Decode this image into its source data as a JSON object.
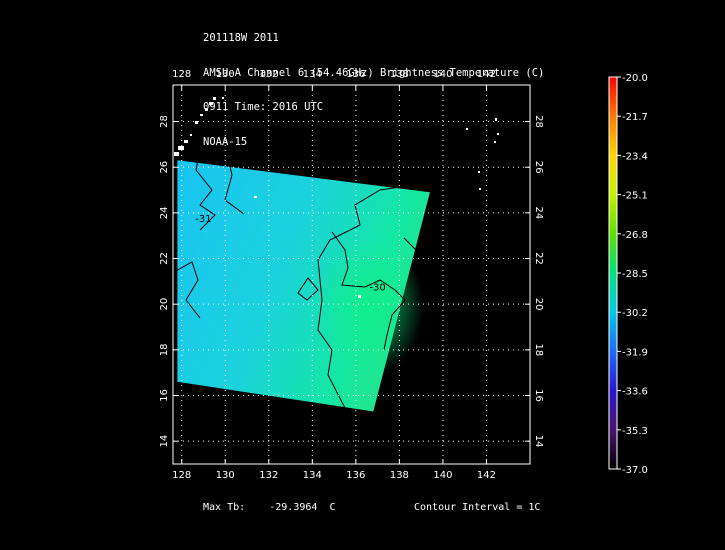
{
  "header": {
    "line1": "201118W 2011",
    "line2": "AMSU-A Channel 6 (54.46GHz) Brightness Temperature (C)",
    "line3": "0911 Time: 2016 UTC",
    "line4": "NOAA-15"
  },
  "footer": {
    "max_label": "Max Tb:",
    "max_value": "-29.3964",
    "max_unit": "C",
    "contour_interval": "Contour Interval = 1C"
  },
  "chart_data": {
    "type": "heatmap",
    "title": "AMSU-A Channel 6 (54.46GHz) Brightness Temperature (C)",
    "x_ticks": [
      "128",
      "130",
      "132",
      "134",
      "136",
      "138",
      "140",
      "142"
    ],
    "y_ticks": [
      "14",
      "16",
      "18",
      "20",
      "22",
      "24",
      "26",
      "28"
    ],
    "xlim": [
      127.6,
      144.0
    ],
    "ylim": [
      13.0,
      29.6
    ],
    "grid": true,
    "swath_corners": [
      [
        127.8,
        26.3
      ],
      [
        139.4,
        24.9
      ],
      [
        136.8,
        15.3
      ],
      [
        127.8,
        16.6
      ]
    ],
    "swath_base_value": -30.7,
    "warm_core": {
      "lon": 136.6,
      "lat": 19.9,
      "value": -29.4
    },
    "contour_labels": [
      {
        "text": "-31",
        "lon": 129.0,
        "lat": 23.6
      },
      {
        "text": "-30",
        "lon": 137.0,
        "lat": 20.6
      }
    ],
    "colorbar": {
      "labels": [
        "-20.0",
        "-21.7",
        "-23.4",
        "-25.1",
        "-26.8",
        "-28.5",
        "-30.2",
        "-31.9",
        "-33.6",
        "-35.3",
        "-37.0"
      ],
      "min": -37.0,
      "max": -20.0,
      "colors": [
        "#ff0000",
        "#ff7a00",
        "#ffd400",
        "#c8f000",
        "#5de000",
        "#00e080",
        "#00c8e8",
        "#1b6cff",
        "#2a17d0",
        "#4b1470",
        "#000000"
      ]
    }
  }
}
